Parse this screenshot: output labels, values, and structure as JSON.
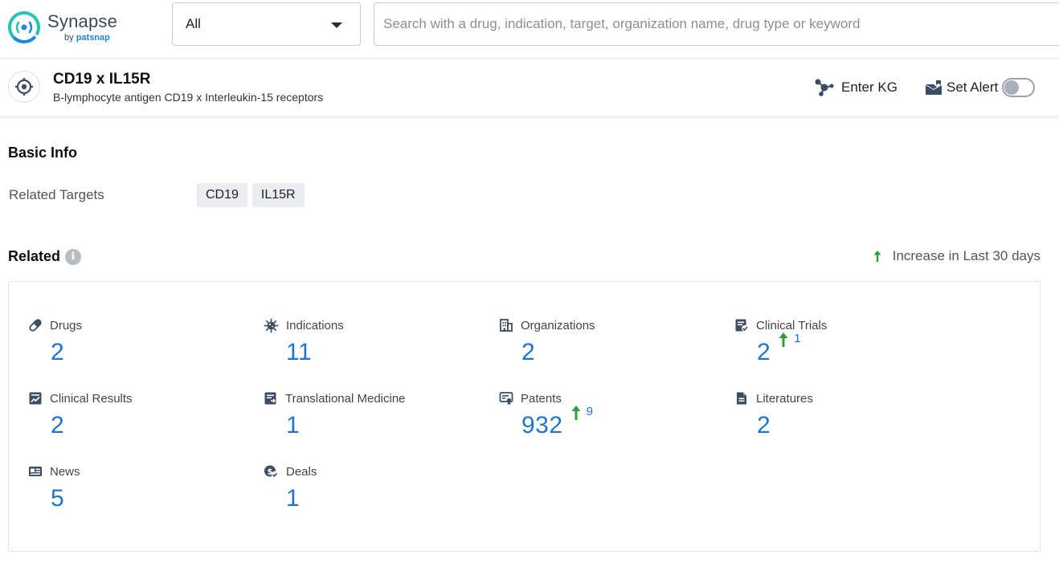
{
  "brand": {
    "name": "Synapse",
    "by": "by",
    "company": "patsnap"
  },
  "search": {
    "scope_value": "All",
    "placeholder": "Search with a drug, indication, target, organization name, drug type or keyword"
  },
  "header": {
    "title": "CD19 x IL15R",
    "subtitle": "B-lymphocyte antigen CD19 x Interleukin-15 receptors",
    "enter_kg_label": "Enter KG",
    "set_alert_label": "Set Alert"
  },
  "basic_info": {
    "title": "Basic Info",
    "related_targets_label": "Related Targets",
    "targets": [
      "CD19",
      "IL15R"
    ]
  },
  "related": {
    "title": "Related",
    "info_glyph": "i",
    "increase_note": "Increase in Last 30 days",
    "stats": [
      {
        "label": "Drugs",
        "value": "2",
        "icon": "pill-icon"
      },
      {
        "label": "Indications",
        "value": "11",
        "icon": "virus-icon"
      },
      {
        "label": "Organizations",
        "value": "2",
        "icon": "building-icon"
      },
      {
        "label": "Clinical Trials",
        "value": "2",
        "icon": "clinical-trial-icon",
        "increase": "1"
      },
      {
        "label": "Clinical Results",
        "value": "2",
        "icon": "chart-result-icon"
      },
      {
        "label": "Translational Medicine",
        "value": "1",
        "icon": "translational-icon"
      },
      {
        "label": "Patents",
        "value": "932",
        "icon": "patent-icon",
        "increase": "9"
      },
      {
        "label": "Literatures",
        "value": "2",
        "icon": "document-icon"
      },
      {
        "label": "News",
        "value": "5",
        "icon": "news-icon"
      },
      {
        "label": "Deals",
        "value": "1",
        "icon": "deal-icon"
      }
    ]
  },
  "colors": {
    "accent": "#1f74cc",
    "increase": "#2e9e3a",
    "icon": "#3d4d63"
  }
}
